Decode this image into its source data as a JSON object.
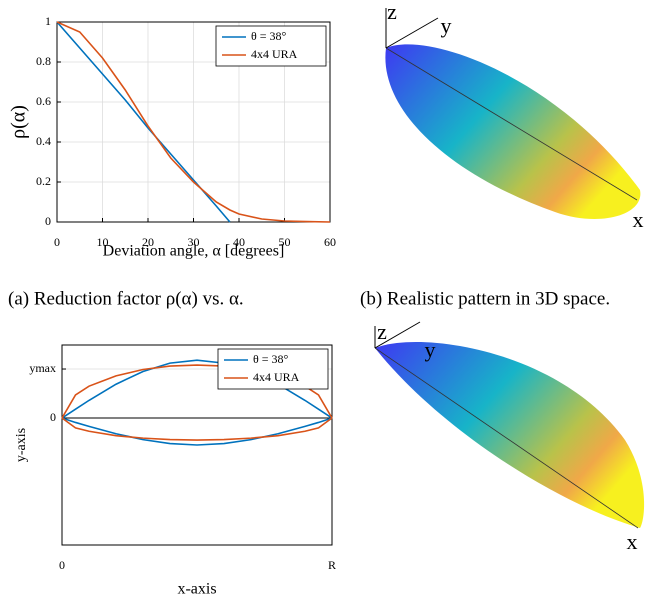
{
  "chart_data": [
    {
      "type": "line",
      "x_label": "Deviation angle, α [degrees]",
      "y_label": "ρ(α)",
      "x": [
        0,
        5,
        10,
        15,
        20,
        25,
        30,
        35,
        38,
        40,
        45,
        50,
        55,
        60
      ],
      "series": [
        {
          "name": "θ = 38°",
          "color": "#0072bd",
          "values": [
            1,
            0.87,
            0.74,
            0.61,
            0.47,
            0.34,
            0.21,
            0.08,
            0,
            null,
            null,
            null,
            null,
            null
          ]
        },
        {
          "name": "4x4 URA",
          "color": "#d95319",
          "values": [
            1,
            0.95,
            0.82,
            0.66,
            0.48,
            0.32,
            0.2,
            0.1,
            0.06,
            0.04,
            0.015,
            0.005,
            0.002,
            0
          ]
        }
      ],
      "xlim": [
        0,
        60
      ],
      "xticks": [
        0,
        10,
        20,
        30,
        40,
        50,
        60
      ],
      "ylim": [
        0,
        1
      ],
      "yticks": [
        0,
        0.2,
        0.4,
        0.6,
        0.8,
        1
      ],
      "grid": true,
      "legend": "upper right"
    },
    {
      "type": "line",
      "x_label": "x-axis",
      "y_label": "y-axis",
      "x": [
        0,
        0.05,
        0.1,
        0.2,
        0.3,
        0.4,
        0.5,
        0.6,
        0.7,
        0.8,
        0.9,
        0.95,
        1
      ],
      "series": [
        {
          "name": "θ = 38°",
          "color": "#0072bd",
          "values": [
            0,
            0.18,
            0.36,
            0.69,
            0.95,
            1.12,
            1.18,
            1.12,
            0.95,
            0.69,
            0.36,
            0.18,
            0
          ],
          "values_lower": [
            0,
            -0.09,
            -0.17,
            -0.32,
            -0.44,
            -0.52,
            -0.55,
            -0.52,
            -0.44,
            -0.32,
            -0.17,
            -0.09,
            0
          ]
        },
        {
          "name": "4x4 URA",
          "color": "#d95319",
          "values": [
            0,
            0.47,
            0.65,
            0.86,
            0.99,
            1.06,
            1.08,
            1.06,
            0.99,
            0.86,
            0.65,
            0.47,
            0
          ],
          "values_lower": [
            0,
            -0.2,
            -0.27,
            -0.36,
            -0.41,
            -0.44,
            -0.45,
            -0.44,
            -0.41,
            -0.36,
            -0.27,
            -0.2,
            0
          ]
        }
      ],
      "xlim": [
        0,
        1
      ],
      "xticks": [
        0,
        {
          "value": 1,
          "label": "R"
        }
      ],
      "ylim": [
        -2.59,
        1.49
      ],
      "yticks": [
        {
          "value": 1,
          "label": "ymax"
        },
        0
      ],
      "grid": true,
      "legend": "upper right"
    }
  ],
  "captions": [
    "(a) Reduction factor ρ(α) vs. α.",
    "(b) Realistic pattern in 3D space."
  ],
  "panels_3d": [
    {
      "z": "z",
      "y": "y",
      "x": "x"
    },
    {
      "z": "z",
      "y": "y",
      "x": "x"
    }
  ]
}
